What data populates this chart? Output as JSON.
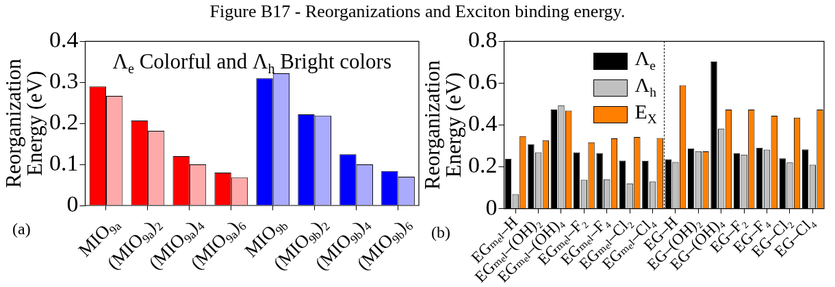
{
  "chart_data": [
    {
      "type": "bar",
      "title": "Figure B17 - Reorganizations and Exciton binding energy.",
      "ylabel": "Reorganization Energy (eV)",
      "categories": [
        "MIO$_{9a}$",
        "(MIO$_{9a}$)$_{2}$",
        "(MIO$_{9a}$)$_{4}$",
        "(MIO$_{9a}$)$_{6}$",
        "MIO$_{9b}$",
        "(MIO$_{9b}$)$_{2}$",
        "(MIO$_{9b}$)$_{4}$",
        "(MIO$_{9b}$)$_{6}$"
      ],
      "series": [
        {
          "colors": [
            "#ff0000",
            "#ff0000",
            "#ff0000",
            "#ff0000",
            "#0000ff",
            "#0000ff",
            "#0000ff",
            "#0000ff"
          ],
          "values": [
            0.29,
            0.207,
            0.12,
            0.08,
            0.31,
            0.222,
            0.125,
            0.084
          ]
        },
        {
          "colors": [
            "#ffaaaa",
            "#ffaaaa",
            "#ffaaaa",
            "#ffaaaa",
            "#aaaaff",
            "#aaaaff",
            "#aaaaff",
            "#aaaaff"
          ],
          "values": [
            0.267,
            0.182,
            0.1,
            0.068,
            0.322,
            0.219,
            0.1,
            0.07
          ]
        }
      ],
      "ylim": [
        0,
        0.4
      ],
      "yticks": [
        0,
        0.1,
        0.2,
        0.3,
        0.4
      ],
      "grid": false,
      "legend": false,
      "annotations": [
        "Λ$_{e}$ Colorful and Λ$_{h}$ Bright colors",
        "(a)"
      ]
    },
    {
      "type": "bar",
      "ylabel": "Reorganization Energy (eV)",
      "categories": [
        "EGₘₑₗ–H",
        "EGₘₑₗ–(OH)₂",
        "EGₘₑₗ–(OH)₄",
        "EGₘₑₗ–F₂",
        "EGₘₑₗ–F₄",
        "EGₘₑₗ–Cl₂",
        "EGₘₑₗ–Cl₄",
        "EG–H",
        "EG–(OH)₂",
        "EG–(OH)₄",
        "EG–F₂",
        "EG–F₄",
        "EG–Cl₂",
        "EG–Cl₄"
      ],
      "series": [
        {
          "name": "Λ$_{e}$",
          "color": "#000000",
          "values": [
            0.239,
            0.308,
            0.474,
            0.269,
            0.266,
            0.23,
            0.229,
            0.236,
            0.288,
            0.703,
            0.264,
            0.291,
            0.24,
            0.283
          ]
        },
        {
          "name": "Λ$_{h}$",
          "color": "#c0c0c0",
          "values": [
            0.069,
            0.269,
            0.494,
            0.138,
            0.14,
            0.121,
            0.129,
            0.223,
            0.275,
            0.383,
            0.258,
            0.282,
            0.221,
            0.21
          ]
        },
        {
          "name": "E$_{X}$",
          "color": "#ff8000",
          "values": [
            0.347,
            0.327,
            0.469,
            0.317,
            0.336,
            0.343,
            0.338,
            0.59,
            0.274,
            0.474,
            0.474,
            0.444,
            0.435,
            0.474
          ]
        }
      ],
      "ylim": [
        0,
        0.8
      ],
      "yticks": [
        0,
        0.2,
        0.4,
        0.6,
        0.8
      ],
      "grid": false,
      "legend": "top left",
      "annotations": [
        "(b)"
      ]
    }
  ]
}
